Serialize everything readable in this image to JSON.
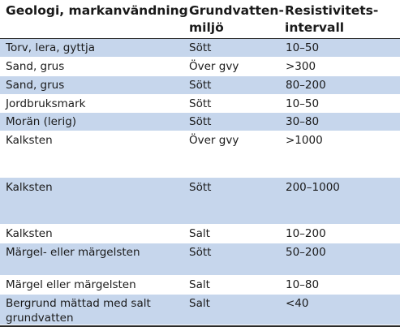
{
  "headers": {
    "geology": "Geologi, markanvändning",
    "groundwater_line1": "Grundvatten-",
    "groundwater_line2": "miljö",
    "resistivity_line1": "Resistivitets-",
    "resistivity_line2": "intervall (Ohmm)"
  },
  "rows": [
    {
      "geology": "Torv, lera, gyttja",
      "groundwater": "Sött",
      "resistivity": "10–50",
      "shaded": true
    },
    {
      "geology": "Sand, grus",
      "groundwater": "Över gvy",
      "resistivity": ">300",
      "shaded": false
    },
    {
      "geology": "Sand, grus",
      "groundwater": "Sött",
      "resistivity": "80–200",
      "shaded": true
    },
    {
      "geology": "Jordbruksmark",
      "groundwater": "Sött",
      "resistivity": "10–50",
      "shaded": false
    },
    {
      "geology": "Morän (lerig)",
      "groundwater": "Sött",
      "resistivity": "30–80",
      "shaded": true
    },
    {
      "geology": "Kalksten",
      "groundwater": "Över gvy",
      "resistivity": ">1000",
      "shaded": false
    },
    {
      "geology": "Kalksten",
      "groundwater": "Sött",
      "resistivity": "200–1000",
      "shaded": true
    },
    {
      "geology": "Kalksten",
      "groundwater": "Salt",
      "resistivity": "10–200",
      "shaded": false
    },
    {
      "geology": "Märgel- eller märgelsten",
      "groundwater": "Sött",
      "resistivity": "50–200",
      "shaded": true
    },
    {
      "geology": "Märgel eller märgelsten",
      "groundwater": "Salt",
      "resistivity": "10–80",
      "shaded": false
    },
    {
      "geology": "Bergrund mättad med salt grundvatten",
      "groundwater": "Salt",
      "resistivity": "<40",
      "shaded": true
    }
  ]
}
